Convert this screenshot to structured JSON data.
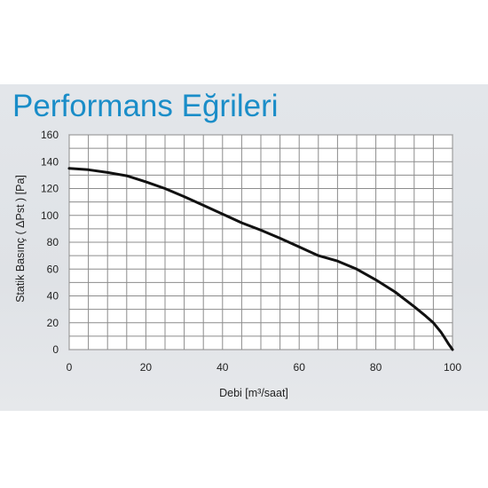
{
  "chart_data": {
    "type": "line",
    "title": "Performans Eğrileri",
    "xlabel": "Debi [m³/saat]",
    "ylabel": "Statik Basınç ( ΔPst ) [Pa]",
    "xlim": [
      0,
      100
    ],
    "ylim": [
      0,
      160
    ],
    "x_ticks": [
      "0",
      "20",
      "40",
      "60",
      "80",
      "100"
    ],
    "y_ticks": [
      "0",
      "20",
      "40",
      "60",
      "80",
      "100",
      "120",
      "140",
      "160"
    ],
    "grid": true,
    "series": [
      {
        "x": [
          0,
          5,
          10,
          15,
          20,
          25,
          30,
          35,
          40,
          45,
          50,
          55,
          60,
          65,
          70,
          75,
          80,
          85,
          90,
          93,
          95,
          97,
          98,
          99,
          100
        ],
        "y": [
          135,
          134,
          132,
          129.5,
          125,
          120,
          114,
          107.5,
          101,
          94.5,
          89,
          83,
          76.5,
          70,
          66,
          60,
          52,
          43,
          32,
          25,
          20,
          13,
          8.5,
          4,
          0
        ]
      }
    ],
    "colors": {
      "line": "#111111",
      "grid": "#8c8c8c",
      "title": "#1a8dc8",
      "plot_bg": "#ffffff"
    }
  }
}
